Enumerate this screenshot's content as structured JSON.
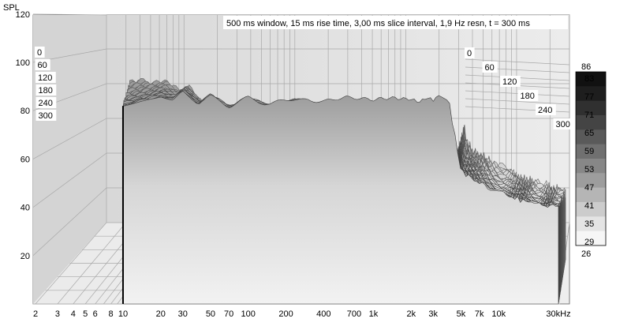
{
  "chart_data": {
    "type": "waterfall",
    "title": "500 ms window, 15 ms rise time, 3,00 ms slice interval, 1,9 Hz resn, t = 300 ms",
    "ylabel": "SPL",
    "y_ticks": [
      "120",
      "100",
      "80",
      "60",
      "40",
      "20"
    ],
    "ylim": [
      0,
      120
    ],
    "x_scale": "log",
    "xlim": [
      2,
      30000
    ],
    "x_ticks": [
      {
        "label": "2",
        "value": 2
      },
      {
        "label": "3",
        "value": 3
      },
      {
        "label": "4",
        "value": 4
      },
      {
        "label": "5",
        "value": 5
      },
      {
        "label": "6",
        "value": 6
      },
      {
        "label": "8",
        "value": 8
      },
      {
        "label": "10",
        "value": 10
      },
      {
        "label": "20",
        "value": 20
      },
      {
        "label": "30",
        "value": 30
      },
      {
        "label": "50",
        "value": 50
      },
      {
        "label": "70",
        "value": 70
      },
      {
        "label": "100",
        "value": 100
      },
      {
        "label": "200",
        "value": 200
      },
      {
        "label": "400",
        "value": 400
      },
      {
        "label": "700",
        "value": 700
      },
      {
        "label": "1k",
        "value": 1000
      },
      {
        "label": "2k",
        "value": 2000
      },
      {
        "label": "3k",
        "value": 3000
      },
      {
        "label": "5k",
        "value": 5000
      },
      {
        "label": "7k",
        "value": 7000
      },
      {
        "label": "10k",
        "value": 10000
      },
      {
        "label": "30kHz",
        "value": 30000
      }
    ],
    "time_labels_left": [
      "0",
      "60",
      "120",
      "180",
      "240",
      "300"
    ],
    "time_labels_right": [
      "0",
      "60",
      "120",
      "180",
      "240",
      "300"
    ],
    "time_range_ms": [
      0,
      300
    ],
    "slice_count": 100,
    "front_slice": {
      "freq_hz": [
        10,
        15,
        20,
        25,
        30,
        40,
        50,
        70,
        100,
        150,
        200,
        300,
        400,
        600,
        1000,
        1500,
        2000,
        3000,
        3500,
        4000,
        5000,
        7000,
        10000,
        20000,
        30000
      ],
      "spl_db": [
        82,
        84,
        86,
        84,
        88,
        83,
        86,
        82,
        85,
        83,
        84,
        85,
        84,
        85,
        84,
        86,
        84,
        85,
        86,
        84,
        55,
        50,
        46,
        41,
        40
      ]
    },
    "colorbar": {
      "max_label": "86",
      "min_label": "26",
      "ticks": [
        "83",
        "77",
        "71",
        "65",
        "59",
        "53",
        "47",
        "41",
        "35",
        "29"
      ],
      "colors": [
        "#111111",
        "#1e1e1e",
        "#303030",
        "#444444",
        "#5a5a5a",
        "#707070",
        "#878787",
        "#9d9d9d",
        "#b5b5b5",
        "#cccccc",
        "#e4e4e4",
        "#f6f6f6"
      ]
    },
    "grid": true
  }
}
